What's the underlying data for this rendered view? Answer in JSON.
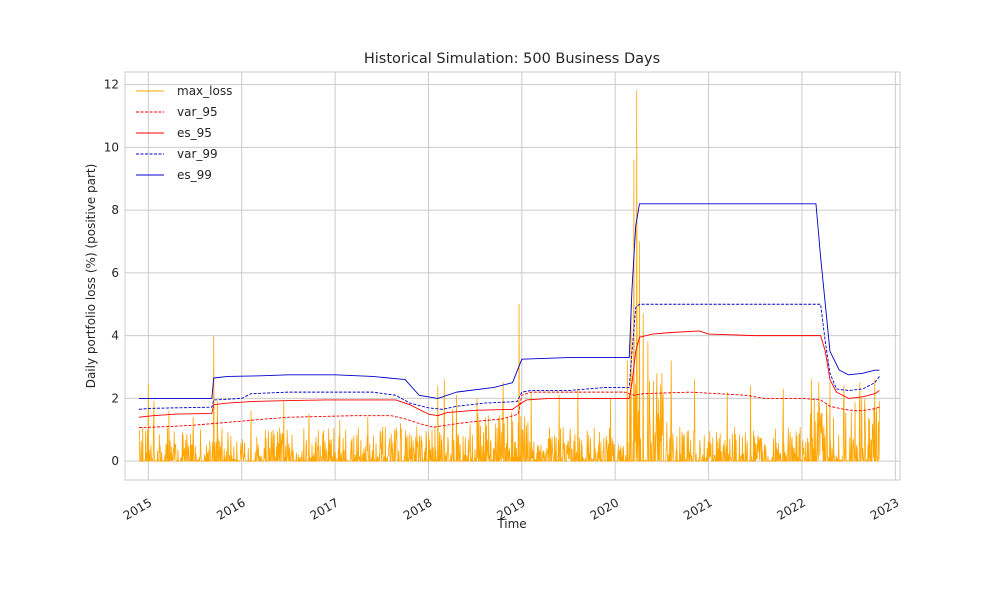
{
  "chart_data": {
    "type": "line",
    "title": "Historical Simulation: 500 Business Days",
    "xlabel": "Time",
    "ylabel": "Daily portfolio loss (%) (positive part)",
    "xlim": [
      2014.75,
      2023.05
    ],
    "ylim": [
      -0.6,
      12.4
    ],
    "x_ticks": [
      2015,
      2016,
      2017,
      2018,
      2019,
      2020,
      2021,
      2022,
      2023
    ],
    "x_tick_labels": [
      "2015",
      "2016",
      "2017",
      "2018",
      "2019",
      "2020",
      "2021",
      "2022",
      "2023"
    ],
    "y_ticks": [
      0,
      2,
      4,
      6,
      8,
      10,
      12
    ],
    "y_tick_labels": [
      "0",
      "2",
      "4",
      "6",
      "8",
      "10",
      "12"
    ],
    "grid": true,
    "legend_position": "top-left",
    "series": [
      {
        "name": "max_loss",
        "color": "#ffa500",
        "style": "solid",
        "kind": "spiky-daily",
        "x_range": [
          2014.9,
          2022.83
        ],
        "peaks": [
          [
            2014.9,
            0.9
          ],
          [
            2015.0,
            2.45
          ],
          [
            2015.06,
            1.9
          ],
          [
            2015.22,
            1.6
          ],
          [
            2015.48,
            1.4
          ],
          [
            2015.7,
            4.0
          ],
          [
            2015.74,
            1.9
          ],
          [
            2016.1,
            1.6
          ],
          [
            2016.45,
            1.9
          ],
          [
            2016.72,
            1.5
          ],
          [
            2017.05,
            1.3
          ],
          [
            2017.35,
            1.4
          ],
          [
            2017.7,
            1.2
          ],
          [
            2018.1,
            2.4
          ],
          [
            2018.17,
            2.6
          ],
          [
            2018.3,
            2.1
          ],
          [
            2018.52,
            2.0
          ],
          [
            2018.8,
            2.5
          ],
          [
            2018.97,
            5.0
          ],
          [
            2019.1,
            2.2
          ],
          [
            2019.4,
            2.1
          ],
          [
            2019.6,
            2.3
          ],
          [
            2019.95,
            2.0
          ],
          [
            2020.13,
            3.2
          ],
          [
            2020.17,
            5.0
          ],
          [
            2020.2,
            9.6
          ],
          [
            2020.23,
            11.8
          ],
          [
            2020.26,
            7.0
          ],
          [
            2020.3,
            4.7
          ],
          [
            2020.35,
            3.8
          ],
          [
            2020.5,
            2.8
          ],
          [
            2020.6,
            3.2
          ],
          [
            2020.85,
            2.6
          ],
          [
            2021.2,
            2.2
          ],
          [
            2021.45,
            2.4
          ],
          [
            2021.8,
            2.3
          ],
          [
            2022.1,
            2.6
          ],
          [
            2022.18,
            2.5
          ],
          [
            2022.3,
            2.5
          ],
          [
            2022.45,
            2.4
          ],
          [
            2022.62,
            2.5
          ],
          [
            2022.78,
            2.6
          ]
        ]
      },
      {
        "name": "var_95",
        "color": "#ff0000",
        "style": "dashed",
        "points": [
          [
            2014.9,
            1.07
          ],
          [
            2015.2,
            1.1
          ],
          [
            2015.5,
            1.15
          ],
          [
            2015.7,
            1.2
          ],
          [
            2015.9,
            1.25
          ],
          [
            2016.2,
            1.33
          ],
          [
            2016.5,
            1.4
          ],
          [
            2016.8,
            1.42
          ],
          [
            2017.2,
            1.45
          ],
          [
            2017.6,
            1.45
          ],
          [
            2017.75,
            1.35
          ],
          [
            2017.9,
            1.2
          ],
          [
            2018.05,
            1.08
          ],
          [
            2018.2,
            1.15
          ],
          [
            2018.45,
            1.25
          ],
          [
            2018.8,
            1.35
          ],
          [
            2018.96,
            1.5
          ],
          [
            2019.0,
            2.1
          ],
          [
            2019.1,
            2.2
          ],
          [
            2019.5,
            2.2
          ],
          [
            2019.8,
            2.2
          ],
          [
            2020.1,
            2.2
          ],
          [
            2020.2,
            2.1
          ],
          [
            2020.3,
            2.15
          ],
          [
            2020.8,
            2.2
          ],
          [
            2021.4,
            2.1
          ],
          [
            2021.6,
            2.0
          ],
          [
            2022.0,
            2.0
          ],
          [
            2022.2,
            1.95
          ],
          [
            2022.3,
            1.75
          ],
          [
            2022.45,
            1.65
          ],
          [
            2022.6,
            1.6
          ],
          [
            2022.75,
            1.65
          ],
          [
            2022.83,
            1.72
          ]
        ]
      },
      {
        "name": "es_95",
        "color": "#ff0000",
        "style": "solid",
        "points": [
          [
            2014.9,
            1.4
          ],
          [
            2015.05,
            1.45
          ],
          [
            2015.3,
            1.5
          ],
          [
            2015.68,
            1.52
          ],
          [
            2015.7,
            1.8
          ],
          [
            2015.85,
            1.85
          ],
          [
            2016.1,
            1.9
          ],
          [
            2016.5,
            1.93
          ],
          [
            2016.9,
            1.95
          ],
          [
            2017.2,
            1.95
          ],
          [
            2017.65,
            1.95
          ],
          [
            2017.8,
            1.8
          ],
          [
            2018.0,
            1.5
          ],
          [
            2018.1,
            1.45
          ],
          [
            2018.2,
            1.55
          ],
          [
            2018.5,
            1.62
          ],
          [
            2018.9,
            1.65
          ],
          [
            2018.97,
            1.8
          ],
          [
            2019.05,
            1.95
          ],
          [
            2019.3,
            2.0
          ],
          [
            2019.8,
            2.0
          ],
          [
            2020.15,
            2.0
          ],
          [
            2020.18,
            2.5
          ],
          [
            2020.22,
            3.5
          ],
          [
            2020.26,
            3.95
          ],
          [
            2020.4,
            4.05
          ],
          [
            2020.6,
            4.1
          ],
          [
            2020.9,
            4.15
          ],
          [
            2021.0,
            4.05
          ],
          [
            2021.5,
            4.0
          ],
          [
            2022.2,
            4.0
          ],
          [
            2022.25,
            3.5
          ],
          [
            2022.3,
            2.6
          ],
          [
            2022.37,
            2.2
          ],
          [
            2022.5,
            2.0
          ],
          [
            2022.65,
            2.05
          ],
          [
            2022.78,
            2.15
          ],
          [
            2022.83,
            2.25
          ]
        ]
      },
      {
        "name": "var_99",
        "color": "#0000cc",
        "style": "dashed",
        "points": [
          [
            2014.9,
            1.65
          ],
          [
            2015.0,
            1.68
          ],
          [
            2015.3,
            1.7
          ],
          [
            2015.68,
            1.72
          ],
          [
            2015.7,
            1.95
          ],
          [
            2016.0,
            2.0
          ],
          [
            2016.1,
            2.15
          ],
          [
            2016.5,
            2.2
          ],
          [
            2017.0,
            2.2
          ],
          [
            2017.4,
            2.2
          ],
          [
            2017.65,
            2.1
          ],
          [
            2017.8,
            1.85
          ],
          [
            2018.0,
            1.7
          ],
          [
            2018.15,
            1.65
          ],
          [
            2018.3,
            1.75
          ],
          [
            2018.6,
            1.85
          ],
          [
            2018.95,
            1.9
          ],
          [
            2019.0,
            2.2
          ],
          [
            2019.1,
            2.25
          ],
          [
            2019.5,
            2.25
          ],
          [
            2019.9,
            2.35
          ],
          [
            2020.15,
            2.35
          ],
          [
            2020.18,
            3.5
          ],
          [
            2020.22,
            4.9
          ],
          [
            2020.26,
            5.0
          ],
          [
            2021.0,
            5.0
          ],
          [
            2022.2,
            5.0
          ],
          [
            2022.25,
            3.8
          ],
          [
            2022.3,
            2.8
          ],
          [
            2022.37,
            2.3
          ],
          [
            2022.5,
            2.25
          ],
          [
            2022.65,
            2.3
          ],
          [
            2022.78,
            2.5
          ],
          [
            2022.83,
            2.7
          ]
        ]
      },
      {
        "name": "es_99",
        "color": "#0000cc",
        "style": "solid",
        "points": [
          [
            2014.9,
            2.0
          ],
          [
            2015.3,
            2.0
          ],
          [
            2015.68,
            2.0
          ],
          [
            2015.7,
            2.65
          ],
          [
            2015.85,
            2.7
          ],
          [
            2016.2,
            2.72
          ],
          [
            2016.5,
            2.75
          ],
          [
            2017.0,
            2.75
          ],
          [
            2017.4,
            2.7
          ],
          [
            2017.75,
            2.6
          ],
          [
            2017.9,
            2.1
          ],
          [
            2018.1,
            2.0
          ],
          [
            2018.3,
            2.2
          ],
          [
            2018.7,
            2.35
          ],
          [
            2018.9,
            2.5
          ],
          [
            2019.0,
            3.25
          ],
          [
            2019.5,
            3.3
          ],
          [
            2019.95,
            3.3
          ],
          [
            2020.15,
            3.3
          ],
          [
            2020.18,
            5.5
          ],
          [
            2020.22,
            7.5
          ],
          [
            2020.26,
            8.2
          ],
          [
            2021.0,
            8.2
          ],
          [
            2022.15,
            8.2
          ],
          [
            2022.2,
            6.5
          ],
          [
            2022.3,
            3.5
          ],
          [
            2022.4,
            2.9
          ],
          [
            2022.5,
            2.75
          ],
          [
            2022.65,
            2.8
          ],
          [
            2022.78,
            2.9
          ],
          [
            2022.83,
            2.9
          ]
        ]
      }
    ]
  }
}
